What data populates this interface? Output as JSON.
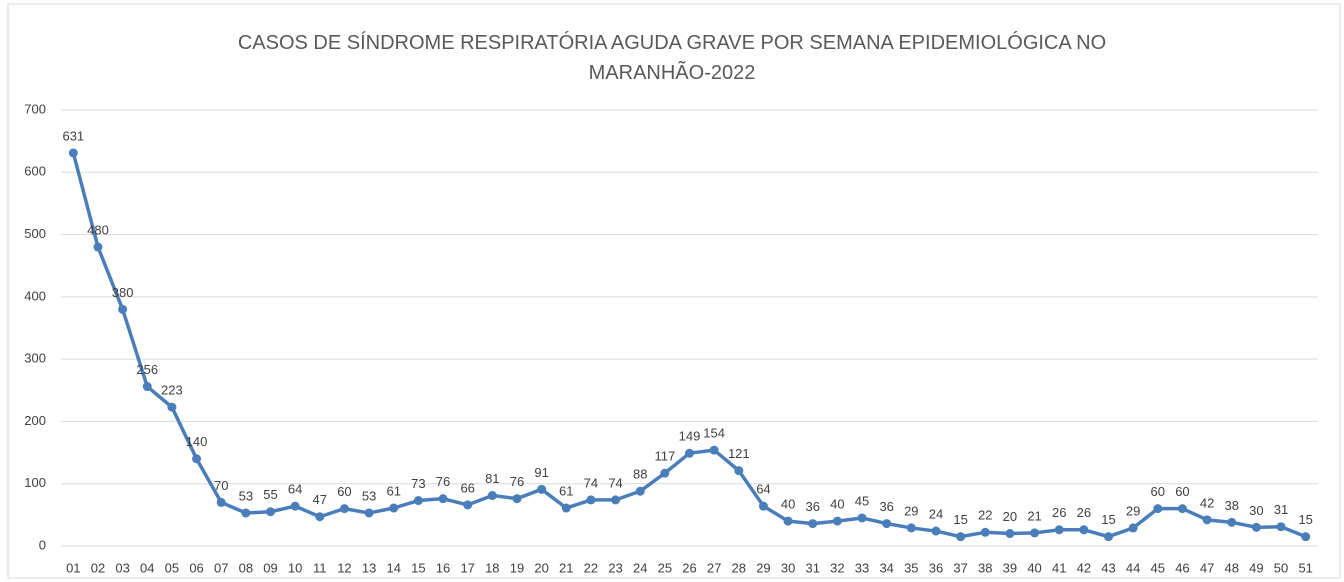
{
  "chart_data": {
    "type": "line",
    "title": "CASOS DE SÍNDROME RESPIRATÓRIA AGUDA GRAVE POR SEMANA EPIDEMIOLÓGICA NO MARANHÃO-2022",
    "categories": [
      "01",
      "02",
      "03",
      "04",
      "05",
      "06",
      "07",
      "08",
      "09",
      "10",
      "11",
      "12",
      "13",
      "14",
      "15",
      "16",
      "17",
      "18",
      "19",
      "20",
      "21",
      "22",
      "23",
      "24",
      "25",
      "26",
      "27",
      "28",
      "29",
      "30",
      "31",
      "32",
      "33",
      "34",
      "35",
      "36",
      "37",
      "38",
      "39",
      "40",
      "41",
      "42",
      "43",
      "44",
      "45",
      "46",
      "47",
      "48",
      "49",
      "50",
      "51"
    ],
    "series": [
      {
        "color": "#4a7ebb",
        "values": [
          631,
          480,
          380,
          256,
          223,
          140,
          70,
          53,
          55,
          64,
          47,
          60,
          53,
          61,
          73,
          76,
          66,
          81,
          76,
          91,
          61,
          74,
          74,
          88,
          117,
          149,
          154,
          121,
          64,
          40,
          36,
          40,
          45,
          36,
          29,
          24,
          15,
          22,
          20,
          21,
          26,
          26,
          15,
          29,
          60,
          60,
          42,
          38,
          30,
          31,
          15
        ]
      }
    ],
    "ylim": [
      0,
      700
    ],
    "yticks": [
      0,
      100,
      200,
      300,
      400,
      500,
      600,
      700
    ],
    "grid": true
  }
}
